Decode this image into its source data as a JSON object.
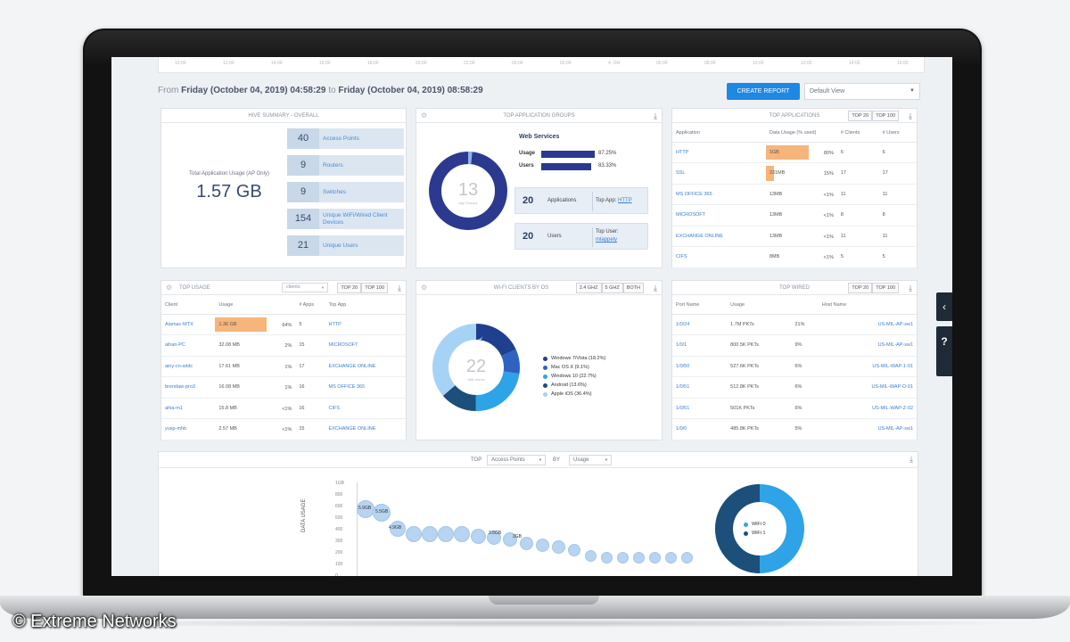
{
  "watermark": "© Extreme Networks",
  "timeline_ticks": [
    "10:00",
    "12:00",
    "14:00",
    "16:00",
    "18:00",
    "20:00",
    "22:00",
    "00:00",
    "02:00",
    "4. Okt",
    "06:00",
    "08:00",
    "10:00",
    "12:00",
    "14:00",
    "16:00"
  ],
  "header": {
    "from_label": "From",
    "from_date": "Friday (October 04, 2019) 04:58:29",
    "to_label": "to",
    "to_date": "Friday (October 04, 2019) 08:58:29",
    "create_report": "CREATE REPORT",
    "view_select": "Default View"
  },
  "summary": {
    "title": "HIVE SUMMARY - OVERALL",
    "total_label": "Total Application Usage (AP Only)",
    "total_value": "1.57 GB",
    "stats": [
      {
        "num": "40",
        "label": "Access Points"
      },
      {
        "num": "9",
        "label": "Routers"
      },
      {
        "num": "9",
        "label": "Switches"
      },
      {
        "num": "154",
        "label": "Unique WiFi/Wired Client Devices"
      },
      {
        "num": "21",
        "label": "Unique Users"
      }
    ]
  },
  "app_groups": {
    "title": "TOP APPLICATION GROUPS",
    "donut_num": "13",
    "donut_sub": "App Groups",
    "group_name": "Web Services",
    "usage_label": "Usage",
    "usage_pct": "87.25%",
    "users_label": "Users",
    "users_pct": "83.33%",
    "apps_num": "20",
    "apps_label": "Applications",
    "top_app_label": "Top App:",
    "top_app": "HTTP",
    "users_num": "20",
    "users_box_label": "Users",
    "top_user_label": "Top User:",
    "top_user": "mlappely"
  },
  "top_apps": {
    "title": "TOP APPLICATIONS",
    "btn_top20": "Top 20",
    "btn_top100": "Top 100",
    "headers": [
      "Application",
      "Data Usage (% used)",
      "# Clients",
      "# Users"
    ],
    "rows": [
      {
        "app": "HTTP",
        "usage": "1GB",
        "pct": "80%",
        "fill": 0.8,
        "clients": "6",
        "users": "6"
      },
      {
        "app": "SSL",
        "usage": "231MB",
        "pct": "15%",
        "fill": 0.15,
        "clients": "17",
        "users": "17"
      },
      {
        "app": "MS OFFICE 365",
        "usage": "13MB",
        "pct": "<1%",
        "fill": 0,
        "clients": "11",
        "users": "11"
      },
      {
        "app": "MICROSOFT",
        "usage": "13MB",
        "pct": "<1%",
        "fill": 0,
        "clients": "8",
        "users": "8"
      },
      {
        "app": "EXCHANGE ONLINE",
        "usage": "13MB",
        "pct": "<1%",
        "fill": 0,
        "clients": "11",
        "users": "11"
      },
      {
        "app": "CIFS",
        "usage": "8MB",
        "pct": "<1%",
        "fill": 0,
        "clients": "5",
        "users": "5"
      }
    ]
  },
  "top_usage": {
    "title": "TOP USAGE",
    "select": "clients",
    "btn_top20": "Top 20",
    "btn_top100": "Top 100",
    "headers": [
      "Client",
      "Usage",
      "# Apps",
      "Top App"
    ],
    "rows": [
      {
        "client": "Aiamac-MTX",
        "usage": "1.36 GB",
        "pct": "64%",
        "fill": 0.64,
        "apps": "5",
        "top": "HTTP"
      },
      {
        "client": "aihan-PC",
        "usage": "32.08 MB",
        "pct": "2%",
        "fill": 0,
        "apps": "15",
        "top": "MICROSOFT"
      },
      {
        "client": "ainy-cn-sddc",
        "usage": "17.61 MB",
        "pct": "1%",
        "fill": 0,
        "apps": "17",
        "top": "EXCHANGE ONLINE"
      },
      {
        "client": "brendaw-pro3",
        "usage": "16.08 MB",
        "pct": "1%",
        "fill": 0,
        "apps": "16",
        "top": "MS OFFICE 365"
      },
      {
        "client": "ahia-m1",
        "usage": "15.8 MB",
        "pct": "<1%",
        "fill": 0,
        "apps": "16",
        "top": "CIFS"
      },
      {
        "client": "yusp-mhb",
        "usage": "2.57 MB",
        "pct": "<1%",
        "fill": 0,
        "apps": "15",
        "top": "EXCHANGE ONLINE"
      }
    ]
  },
  "wifi_os": {
    "title": "WI-FI CLIENTS BY OS",
    "btn_24": "2.4 Ghz",
    "btn_5": "5 Ghz",
    "btn_both": "Both",
    "donut_num": "22",
    "donut_sub": "Wifi clients",
    "legend": [
      {
        "label": "Windows 7/Vista (18.2%)",
        "color": "#1f3f8f"
      },
      {
        "label": "Mac OS X (9.1%)",
        "color": "#2f63c0"
      },
      {
        "label": "Windows 10 (22.7%)",
        "color": "#2ea3e8"
      },
      {
        "label": "Android (13.6%)",
        "color": "#1c4f7a"
      },
      {
        "label": "Apple iOS (36.4%)",
        "color": "#a6d3f5"
      }
    ]
  },
  "top_wired": {
    "title": "TOP WIRED",
    "btn_top20": "Top 20",
    "btn_top100": "Top 100",
    "headers": [
      "Port Name",
      "Usage",
      "",
      "Host Name"
    ],
    "rows": [
      {
        "port": "1/0/24",
        "usage": "1.7M PKTs",
        "pct": "21%",
        "host": "US-MIL-AP-sw1"
      },
      {
        "port": "1/0/1",
        "usage": "800.5K PKTs",
        "pct": "9%",
        "host": "US-MIL-AP-sw1"
      },
      {
        "port": "1/0/50",
        "usage": "527.6K PKTs",
        "pct": "6%",
        "host": "US-MIL-WAP-1-01"
      },
      {
        "port": "1/0/51",
        "usage": "512.8K PKTs",
        "pct": "6%",
        "host": "US-MIL-WAP-D-01"
      },
      {
        "port": "1/0/51",
        "usage": "501K PKTs",
        "pct": "6%",
        "host": "US-MIL-WAP-Z-02"
      },
      {
        "port": "1/0/0",
        "usage": "485.8K PKTs",
        "pct": "5%",
        "host": "US-MIL-AP-sw1"
      }
    ]
  },
  "bottom": {
    "top_label": "TOP",
    "entity_select": "Access Points",
    "by_label": "BY",
    "metric_select": "Usage",
    "y_axis": "DATA USAGE",
    "y_ticks": [
      "1GB",
      "800",
      "600",
      "500",
      "400",
      "300",
      "200",
      "100",
      "0"
    ],
    "bubble_labels": [
      "5.9GB",
      "5.5GB",
      "4.9GB",
      "3.5GB",
      "3GB"
    ],
    "wifi_legend": [
      {
        "label": "WiFi 0",
        "color": "#2ea3e8"
      },
      {
        "label": "WiFi 1",
        "color": "#1c4f7a"
      }
    ]
  }
}
